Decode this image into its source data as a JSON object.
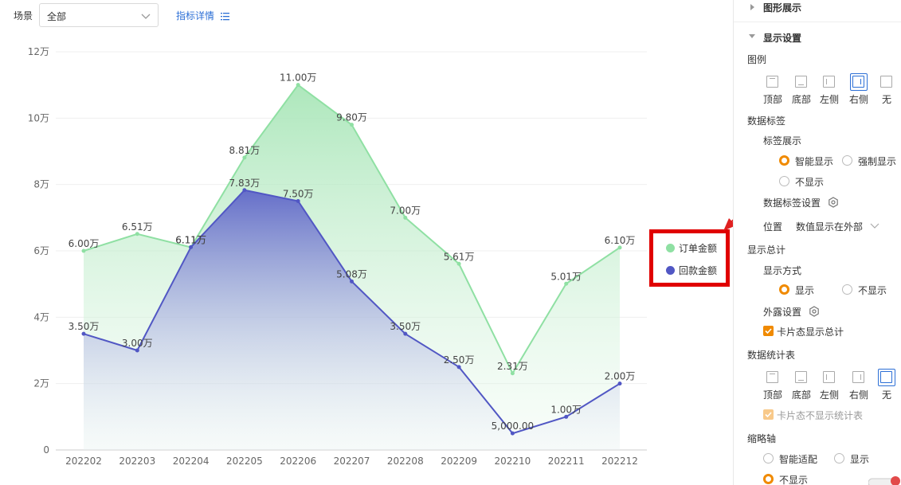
{
  "filter": {
    "scene_label": "场景",
    "scene_value": "全部",
    "metric_link": "指标详情"
  },
  "chart_data": {
    "type": "area",
    "categories": [
      "202202",
      "202203",
      "202204",
      "202205",
      "202206",
      "202207",
      "202208",
      "202209",
      "202210",
      "202211",
      "202212"
    ],
    "y_ticks": [
      "0",
      "2万",
      "4万",
      "6万",
      "8万",
      "10万",
      "12万"
    ],
    "ylim": [
      0,
      120000
    ],
    "grid": true,
    "legend_position": "right",
    "series": [
      {
        "name": "订单金额",
        "color": "#8fe0a3",
        "values": [
          60000,
          65100,
          61100,
          88100,
          110000,
          98000,
          70000,
          56100,
          23100,
          50100,
          61000
        ],
        "labels": [
          "6.00万",
          "6.51万",
          "6.11万",
          "8.81万",
          "11.00万",
          "9.80万",
          "7.00万",
          "5.61万",
          "2.31万",
          "5.01万",
          "6.10万"
        ]
      },
      {
        "name": "回款金额",
        "color": "#5157c4",
        "values": [
          35000,
          30000,
          61100,
          78300,
          75000,
          50800,
          35000,
          25000,
          5000,
          10000,
          20000
        ],
        "labels": [
          "3.50万",
          "3.00万",
          "6.11万",
          "7.83万",
          "7.50万",
          "5.08万",
          "3.50万",
          "2.50万",
          "5,000.00",
          "1.00万",
          "2.00万"
        ]
      }
    ]
  },
  "panel": {
    "graph_display": "图形展示",
    "display_settings": "显示设置",
    "legend_title": "图例",
    "legend_options": [
      "顶部",
      "底部",
      "左侧",
      "右侧",
      "无"
    ],
    "legend_selected": "右侧",
    "data_label_title": "数据标签",
    "label_display": "标签展示",
    "label_opts": [
      "智能显示",
      "强制显示",
      "不显示"
    ],
    "label_selected": "智能显示",
    "data_label_setting": "数据标签设置",
    "position_label": "位置",
    "position_value": "数值显示在外部",
    "show_total_title": "显示总计",
    "show_mode": "显示方式",
    "show_opts": [
      "显示",
      "不显示"
    ],
    "show_selected": "显示",
    "exposure_setting": "外露设置",
    "card_total": "卡片态显示总计",
    "stat_table_title": "数据统计表",
    "stat_options": [
      "顶部",
      "底部",
      "左侧",
      "右侧",
      "无"
    ],
    "stat_selected": "无",
    "card_no_table": "卡片态不显示统计表",
    "thumb_axis_title": "缩略轴",
    "thumb_opts": [
      "智能适配",
      "显示",
      "不显示"
    ],
    "thumb_selected": "不显示"
  },
  "colors": {
    "accent": "#2c6fd6",
    "radio_on": "#f08a00",
    "highlight": "#e00000"
  }
}
